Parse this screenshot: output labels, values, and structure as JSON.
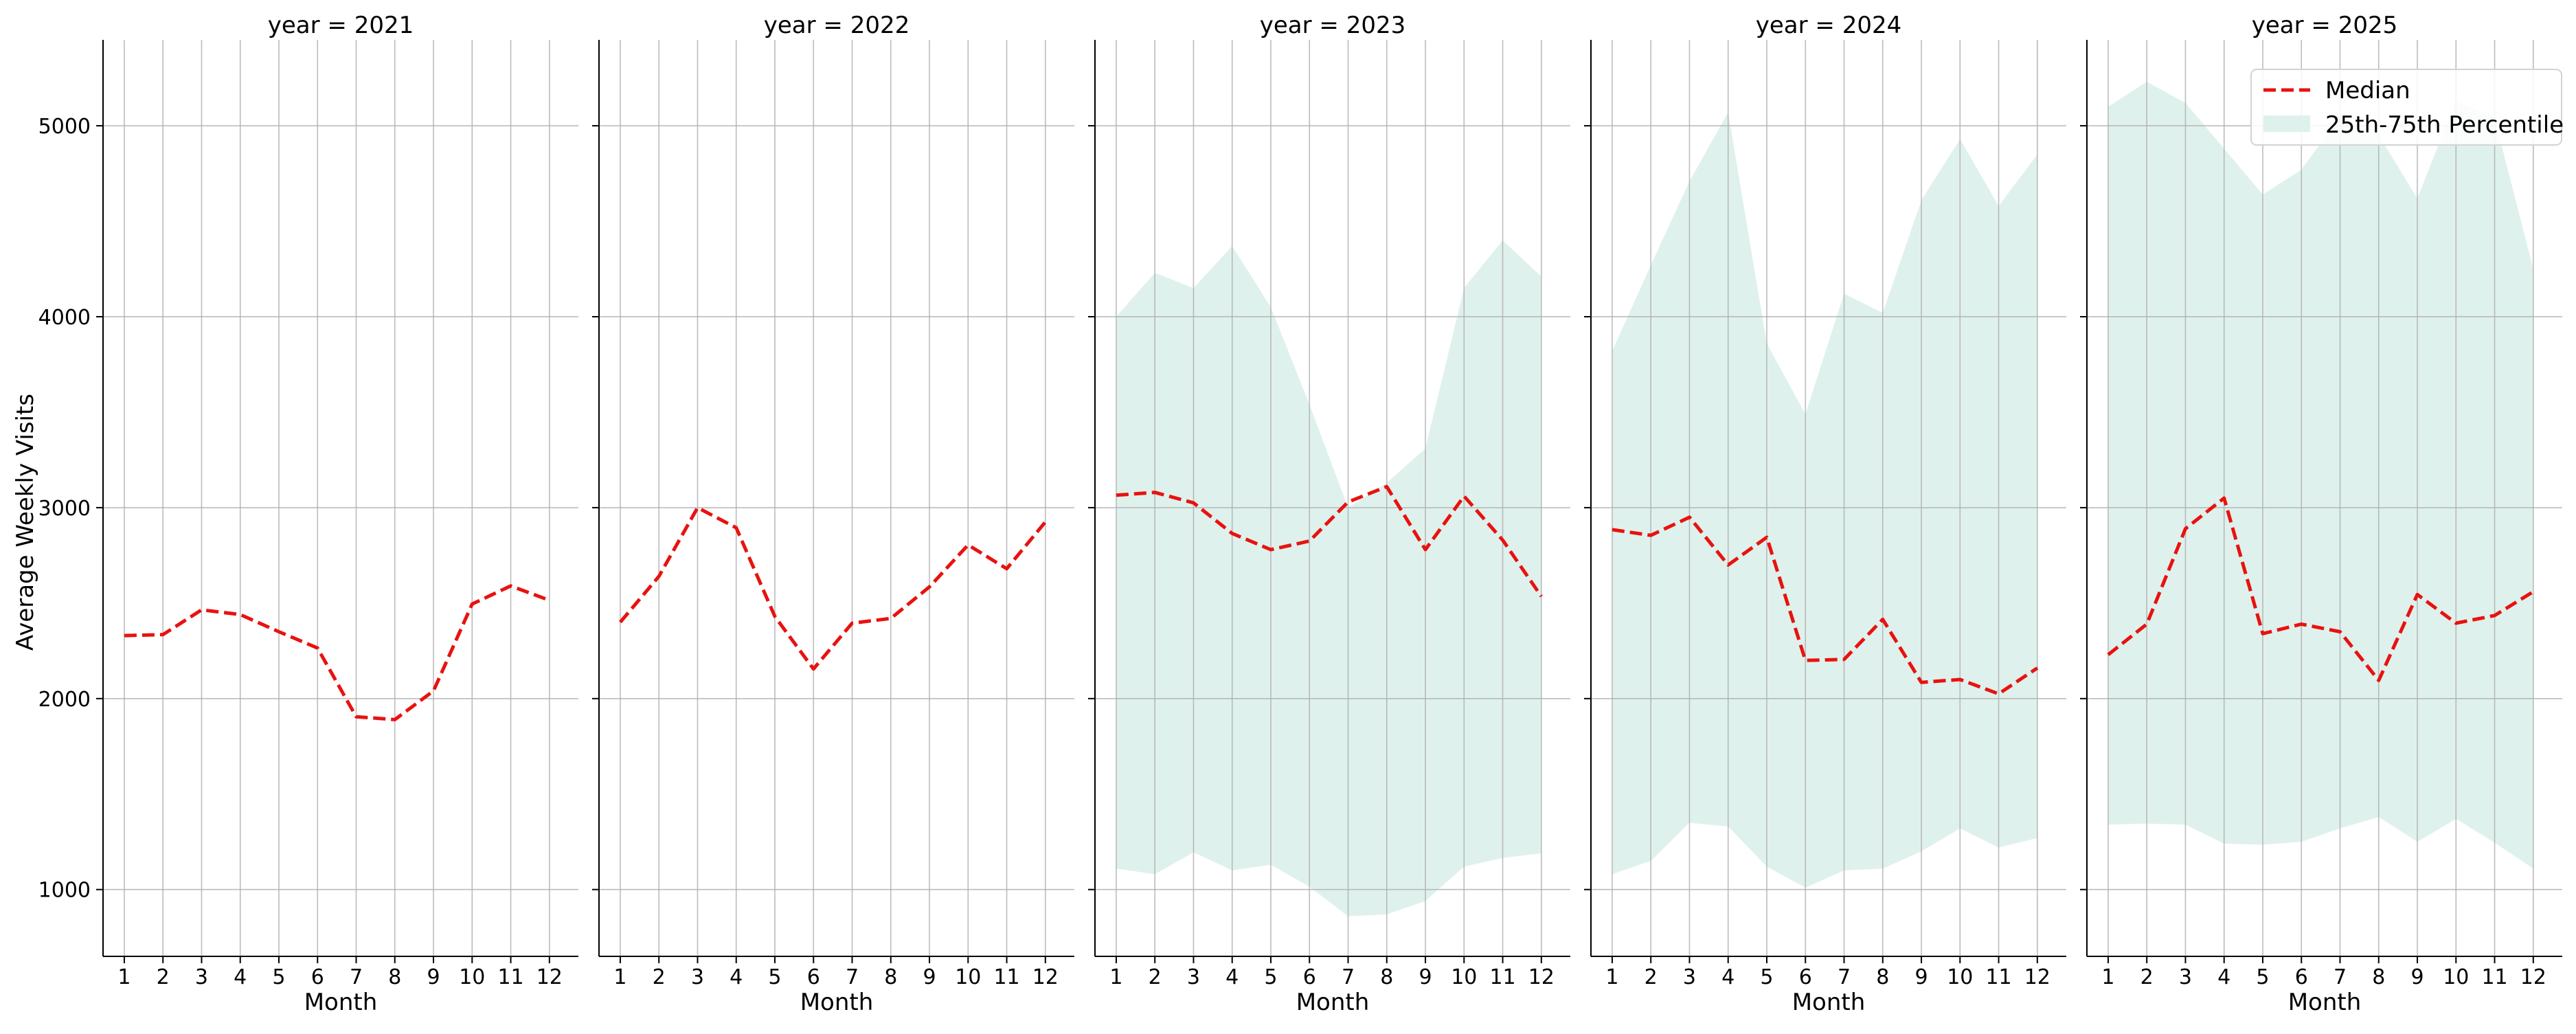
{
  "chart_data": {
    "type": "line",
    "ylabel": "Average Weekly Visits",
    "xlabel": "Month",
    "ylim": [
      650,
      5450
    ],
    "xlim": [
      0.45,
      12.75
    ],
    "y_ticks": [
      1000,
      2000,
      3000,
      4000,
      5000
    ],
    "x_ticks": [
      1,
      2,
      3,
      4,
      5,
      6,
      7,
      8,
      9,
      10,
      11,
      12
    ],
    "grid": true,
    "legend_placement": "top-right",
    "legend": {
      "median_label": "Median",
      "band_label": "25th-75th Percentile"
    },
    "colors": {
      "median": "#e8120f",
      "band": "#dff1ec",
      "grid": "#b0b0b0",
      "axis": "#000000"
    },
    "panels": [
      {
        "title": "year = 2021",
        "median": [
          2330,
          2335,
          2465,
          2440,
          2350,
          2265,
          1905,
          1890,
          2040,
          2495,
          2590,
          2515
        ],
        "q25": null,
        "q75": null
      },
      {
        "title": "year = 2022",
        "median": [
          2400,
          2640,
          3000,
          2895,
          2430,
          2155,
          2395,
          2420,
          2585,
          2805,
          2680,
          2925
        ],
        "q25": null,
        "q75": null
      },
      {
        "title": "year = 2023",
        "median": [
          3065,
          3080,
          3025,
          2865,
          2780,
          2825,
          3030,
          3110,
          2780,
          3060,
          2830,
          2535
        ],
        "q25": [
          1110,
          1080,
          1195,
          1100,
          1130,
          1015,
          860,
          870,
          940,
          1120,
          1165,
          1190
        ],
        "q75": [
          4000,
          4230,
          4150,
          4370,
          4050,
          3540,
          3000,
          3130,
          3310,
          4150,
          4400,
          4210
        ]
      },
      {
        "title": "year = 2024",
        "median": [
          2885,
          2855,
          2950,
          2700,
          2845,
          2200,
          2205,
          2415,
          2085,
          2100,
          2025,
          2160
        ],
        "q25": [
          1080,
          1150,
          1350,
          1330,
          1120,
          1010,
          1100,
          1110,
          1200,
          1320,
          1220,
          1270
        ],
        "q75": [
          3820,
          4270,
          4710,
          5070,
          3860,
          3490,
          4120,
          4020,
          4610,
          4930,
          4580,
          4850
        ]
      },
      {
        "title": "year = 2025",
        "median": [
          2230,
          2390,
          2890,
          3050,
          2340,
          2390,
          2350,
          2095,
          2545,
          2395,
          2435,
          2560
        ],
        "q25": [
          1340,
          1345,
          1340,
          1240,
          1235,
          1250,
          1320,
          1380,
          1250,
          1370,
          1245,
          1110
        ],
        "q75": [
          5100,
          5230,
          5120,
          4880,
          4640,
          4770,
          5050,
          4950,
          4620,
          5130,
          5040,
          4250
        ]
      }
    ]
  }
}
